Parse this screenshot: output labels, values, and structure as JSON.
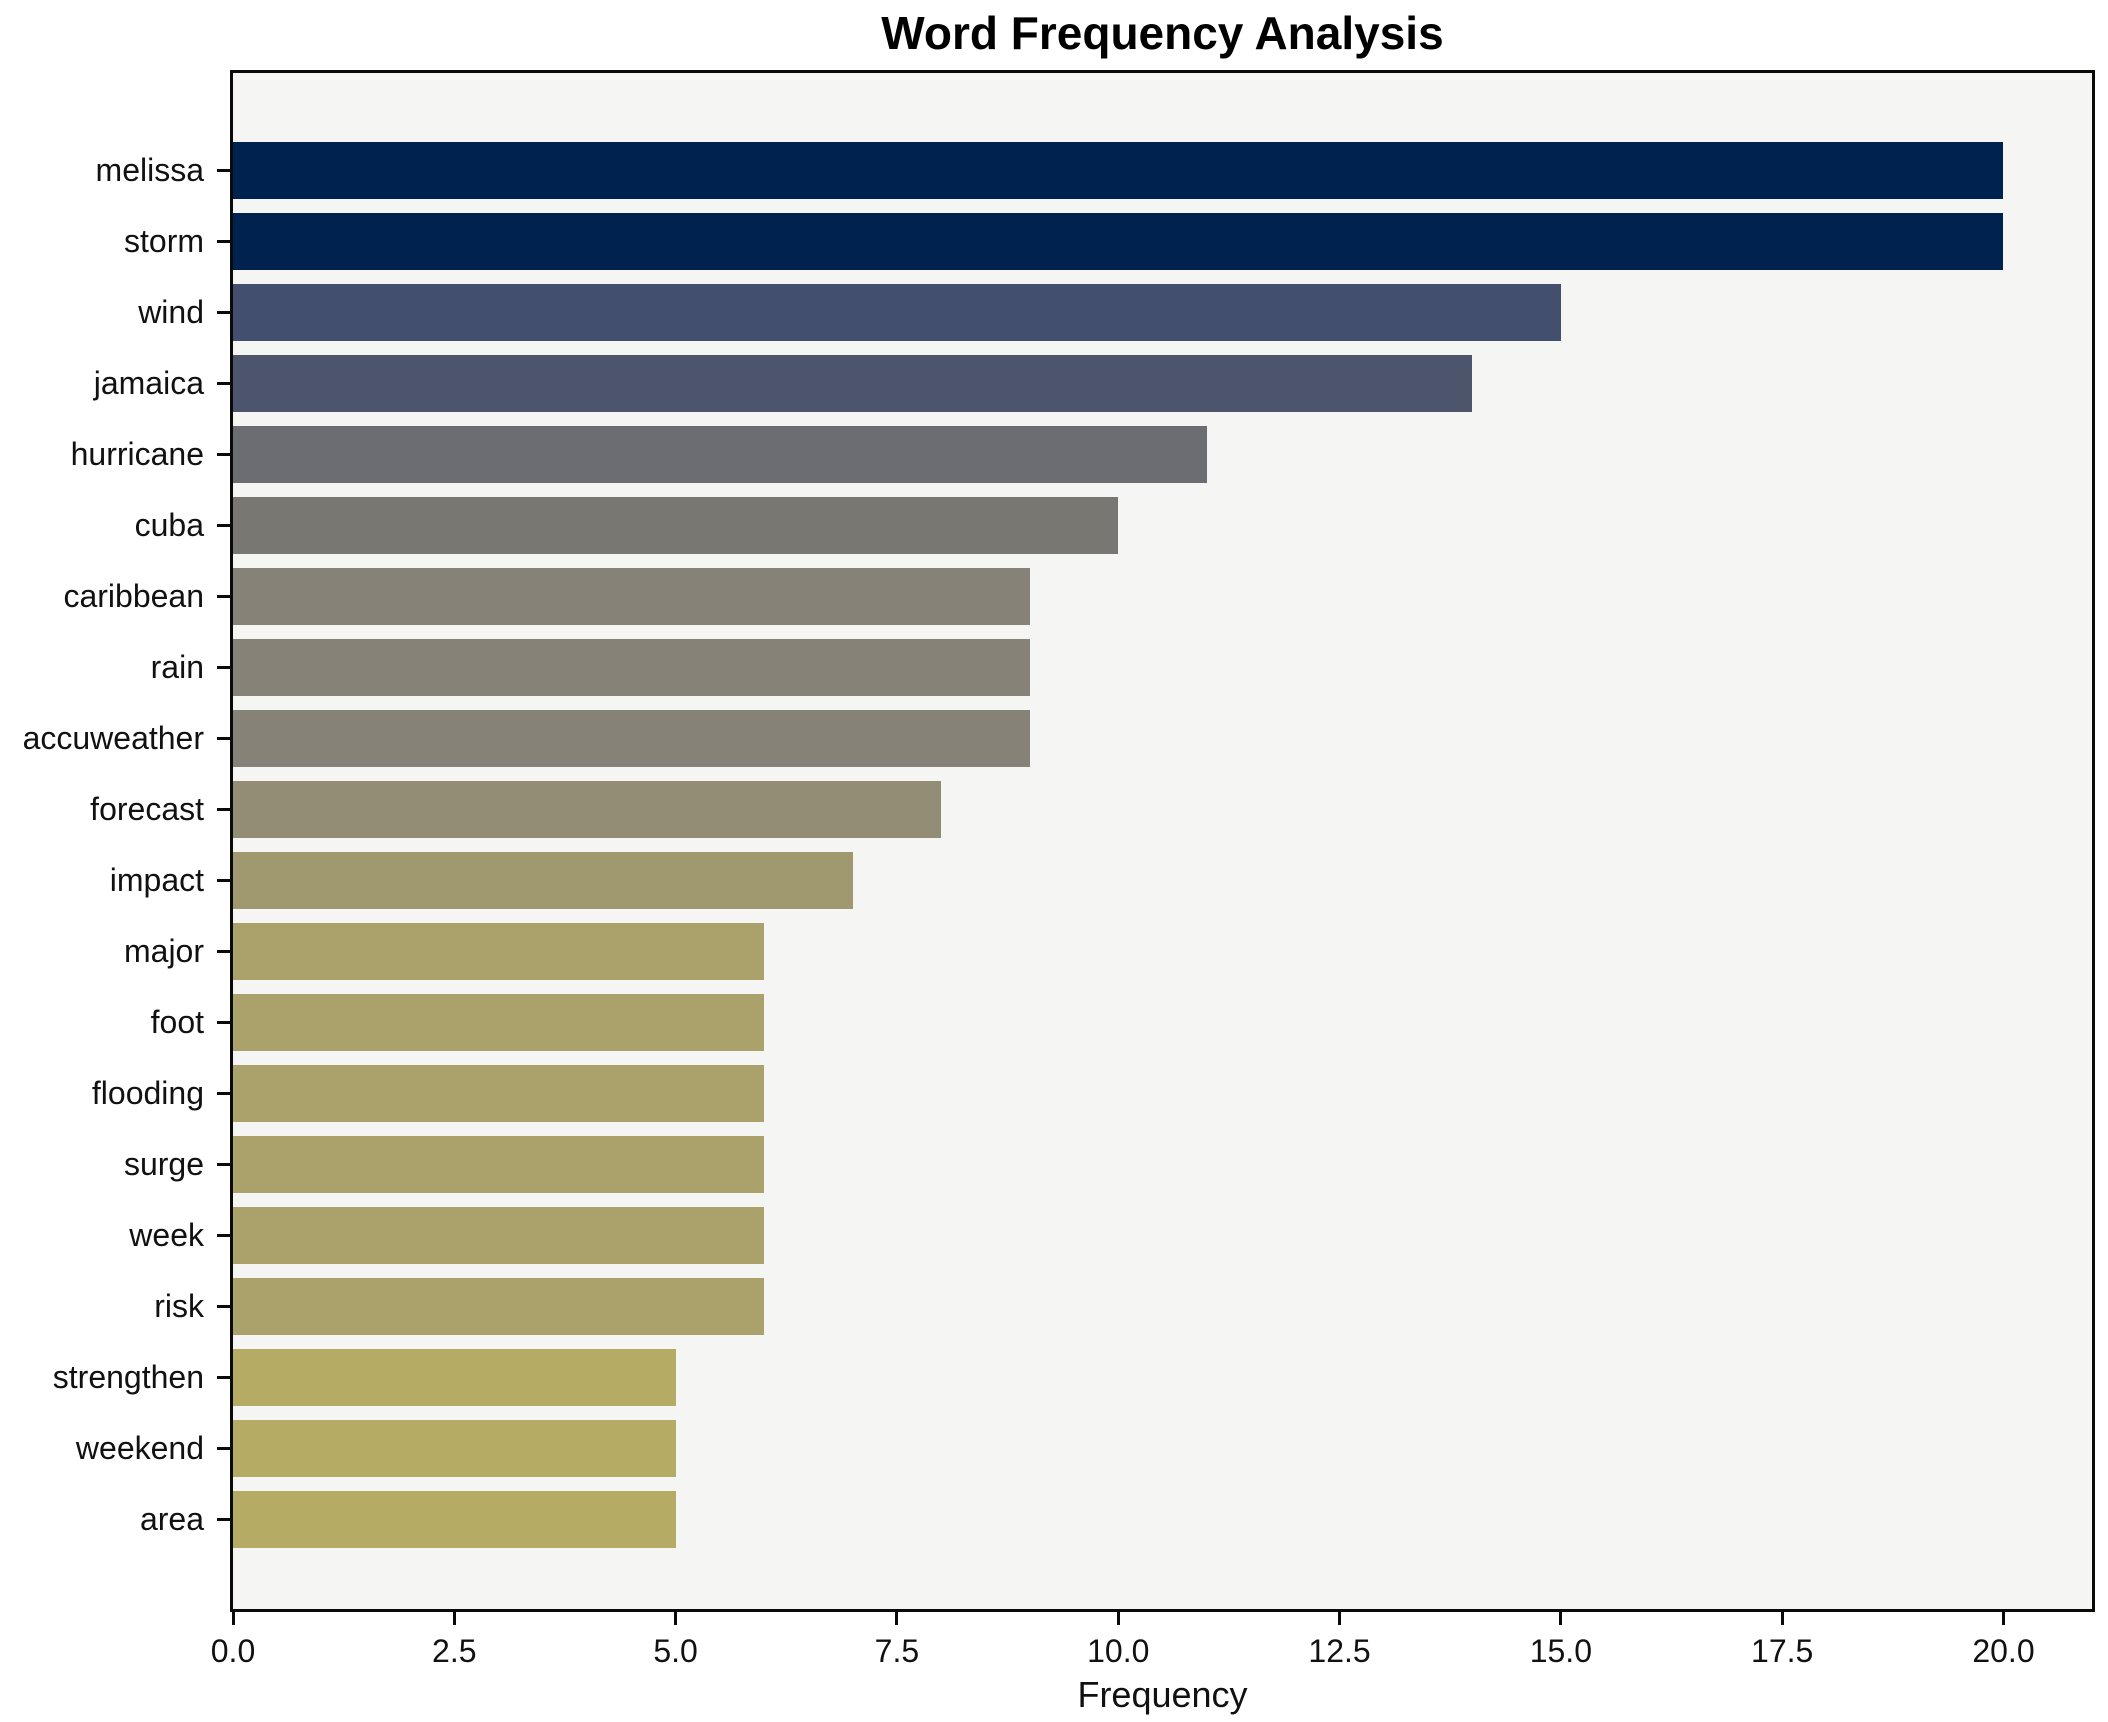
{
  "chart_data": {
    "type": "bar",
    "orientation": "horizontal",
    "title": "Word Frequency Analysis",
    "xlabel": "Frequency",
    "ylabel": "",
    "grid": false,
    "legend": null,
    "xlim": [
      0,
      21
    ],
    "plot_background": "#f5f5f4",
    "spine_color": "#0a0a0a",
    "x_ticks": [
      {
        "value": 0,
        "label": "0.0"
      },
      {
        "value": 2.5,
        "label": "2.5"
      },
      {
        "value": 5,
        "label": "5.0"
      },
      {
        "value": 7.5,
        "label": "7.5"
      },
      {
        "value": 10,
        "label": "10.0"
      },
      {
        "value": 12.5,
        "label": "12.5"
      },
      {
        "value": 15,
        "label": "15.0"
      },
      {
        "value": 17.5,
        "label": "17.5"
      },
      {
        "value": 20,
        "label": "20.0"
      }
    ],
    "categories": [
      "melissa",
      "storm",
      "wind",
      "jamaica",
      "hurricane",
      "cuba",
      "caribbean",
      "rain",
      "accuweather",
      "forecast",
      "impact",
      "major",
      "foot",
      "flooding",
      "surge",
      "week",
      "risk",
      "strengthen",
      "weekend",
      "area"
    ],
    "values": [
      20,
      20,
      15,
      14,
      11,
      10,
      9,
      9,
      9,
      8,
      7,
      6,
      6,
      6,
      6,
      6,
      6,
      5,
      5,
      5
    ],
    "bar_colors": [
      "#00224e",
      "#00224e",
      "#424f6e",
      "#4d556c",
      "#6c6d72",
      "#787771",
      "#868278",
      "#868278",
      "#868278",
      "#948d76",
      "#a0986f",
      "#aba26b",
      "#aba26b",
      "#aba26b",
      "#aba26b",
      "#aba26b",
      "#aba26b",
      "#b5ab65",
      "#b5ab65",
      "#b5ab65"
    ]
  }
}
